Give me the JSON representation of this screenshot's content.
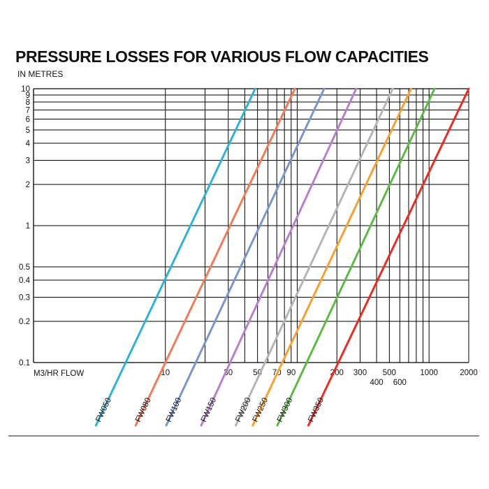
{
  "chart_data": {
    "type": "line",
    "title": "PRESSURE LOSSES FOR VARIOUS FLOW CAPACITIES",
    "ylabel": "IN METRES",
    "xlabel": "M3/HR FLOW",
    "x_scale": "log",
    "y_scale": "log",
    "xlim": [
      1,
      2000
    ],
    "ylim": [
      0.1,
      10
    ],
    "grid": true,
    "x_gridlines": [
      10,
      20,
      30,
      40,
      50,
      60,
      70,
      80,
      90,
      100,
      200,
      300,
      400,
      500,
      600,
      700,
      800,
      900,
      1000,
      2000
    ],
    "y_ticks": [
      {
        "value": 10,
        "label": "10"
      },
      {
        "value": 9,
        "label": "9"
      },
      {
        "value": 8,
        "label": "8"
      },
      {
        "value": 7,
        "label": "7"
      },
      {
        "value": 6,
        "label": "6"
      },
      {
        "value": 5,
        "label": "5"
      },
      {
        "value": 4,
        "label": "4"
      },
      {
        "value": 3,
        "label": "3"
      },
      {
        "value": 2,
        "label": "2"
      },
      {
        "value": 1,
        "label": "1"
      },
      {
        "value": 0.5,
        "label": "0.5"
      },
      {
        "value": 0.4,
        "label": "0.4"
      },
      {
        "value": 0.3,
        "label": "0.3"
      },
      {
        "value": 0.2,
        "label": "0.2"
      },
      {
        "value": 0.1,
        "label": "0.1"
      }
    ],
    "x_ticks": [
      {
        "value": 10,
        "label": "10",
        "row": 1
      },
      {
        "value": 30,
        "label": "30",
        "row": 1
      },
      {
        "value": 50,
        "label": "50",
        "row": 1
      },
      {
        "value": 70,
        "label": "70",
        "row": 1
      },
      {
        "value": 90,
        "label": "90",
        "row": 1
      },
      {
        "value": 200,
        "label": "200",
        "row": 1
      },
      {
        "value": 300,
        "label": "300",
        "row": 1
      },
      {
        "value": 400,
        "label": "400",
        "row": 2
      },
      {
        "value": 500,
        "label": "500",
        "row": 1
      },
      {
        "value": 600,
        "label": "600",
        "row": 2
      },
      {
        "value": 1000,
        "label": "1000",
        "row": 1
      },
      {
        "value": 2000,
        "label": "2000",
        "row": 1
      }
    ],
    "series": [
      {
        "name": "FW050",
        "color": "#2fb2d8",
        "points": [
          [
            5,
            0.1
          ],
          [
            48,
            10
          ]
        ]
      },
      {
        "name": "FW080",
        "color": "#f47a5a",
        "points": [
          [
            10,
            0.1
          ],
          [
            96,
            10
          ]
        ]
      },
      {
        "name": "FW100",
        "color": "#7a95cf",
        "points": [
          [
            17,
            0.1
          ],
          [
            160,
            10
          ]
        ]
      },
      {
        "name": "FW150",
        "color": "#b77fd0",
        "points": [
          [
            31,
            0.1
          ],
          [
            280,
            10
          ]
        ]
      },
      {
        "name": "FW200",
        "color": "#b5b5b5",
        "points": [
          [
            57,
            0.1
          ],
          [
            530,
            10
          ]
        ]
      },
      {
        "name": "FW250",
        "color": "#f7a12e",
        "points": [
          [
            77,
            0.1
          ],
          [
            730,
            10
          ]
        ]
      },
      {
        "name": "FW300",
        "color": "#5fba45",
        "points": [
          [
            118,
            0.1
          ],
          [
            1100,
            10
          ]
        ]
      },
      {
        "name": "FW350",
        "color": "#ee2a24",
        "points": [
          [
            205,
            0.1
          ],
          [
            2000,
            10
          ]
        ]
      }
    ]
  }
}
